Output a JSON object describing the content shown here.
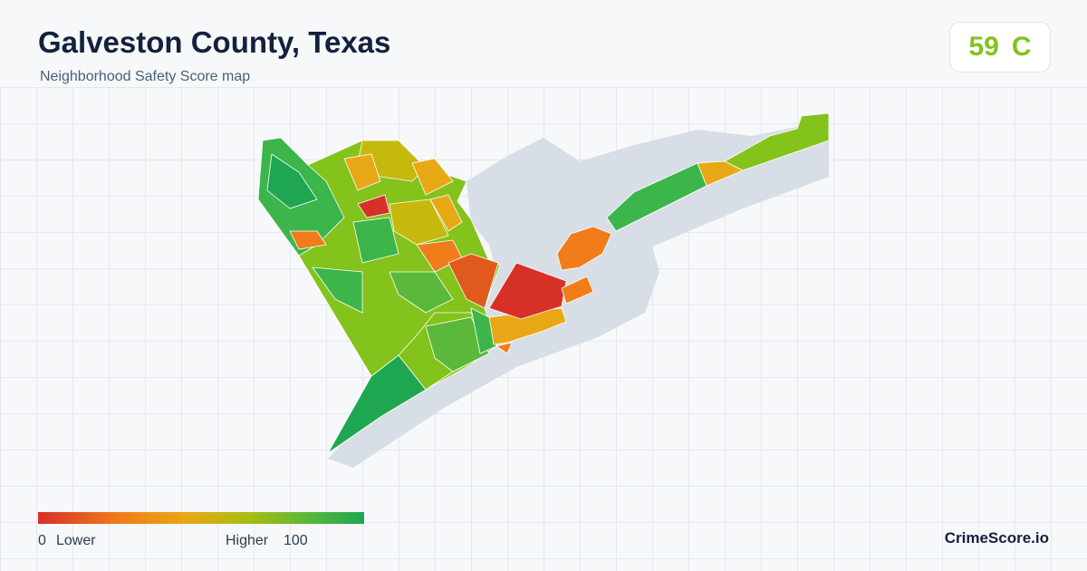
{
  "header": {
    "title": "Galveston County, Texas",
    "subtitle": "Neighborhood Safety Score map"
  },
  "score": {
    "value": 59,
    "grade": "C"
  },
  "legend": {
    "min": 0,
    "min_label": "Lower",
    "max_label": "Higher",
    "max": 100
  },
  "footer": {
    "brand": "CrimeScore.io"
  }
}
